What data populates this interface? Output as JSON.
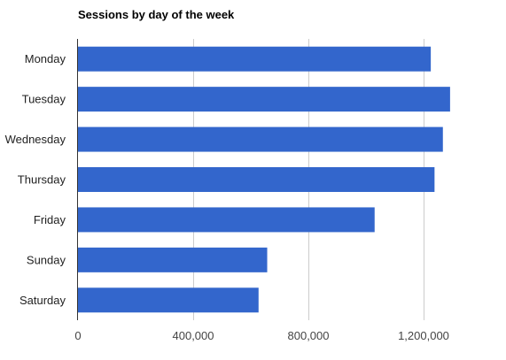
{
  "chart_data": {
    "type": "bar",
    "orientation": "horizontal",
    "title": "Sessions by day of the week",
    "categories": [
      "Monday",
      "Tuesday",
      "Wednesday",
      "Thursday",
      "Friday",
      "Sunday",
      "Saturday"
    ],
    "values": [
      1225000,
      1292000,
      1267000,
      1238000,
      1030000,
      657000,
      627000
    ],
    "xlim": [
      0,
      1400000
    ],
    "xticks": [
      0,
      400000,
      800000,
      1200000
    ],
    "xtick_labels": [
      "0",
      "400,000",
      "800,000",
      "1,200,000"
    ],
    "grid": true,
    "legend": "none",
    "bar_color": "#3366cc"
  }
}
